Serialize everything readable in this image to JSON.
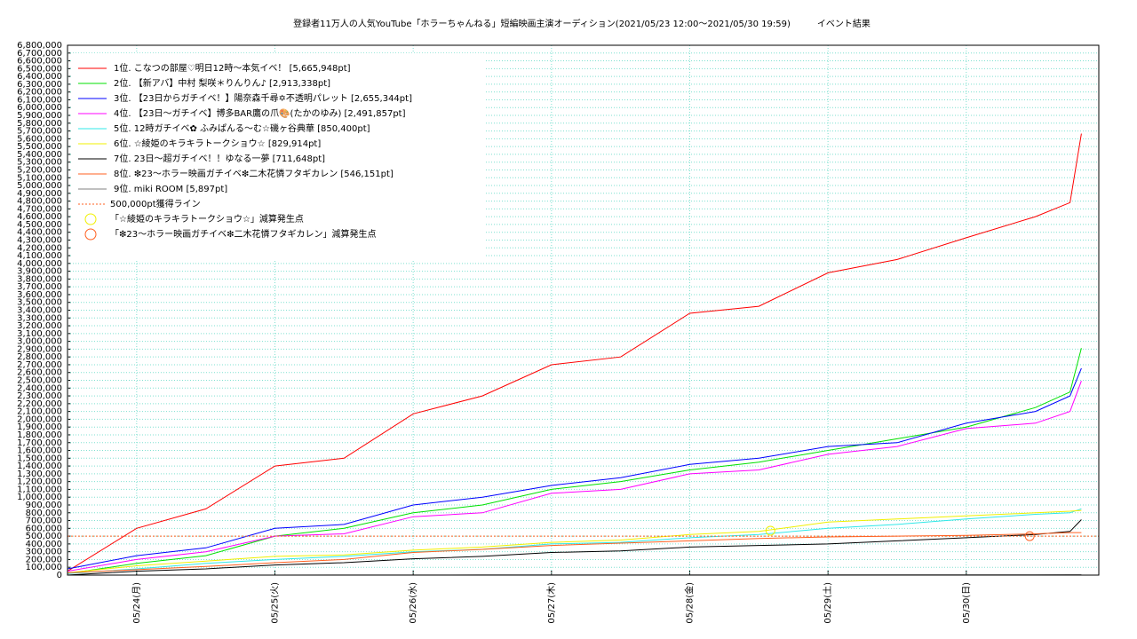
{
  "chart_data": {
    "type": "line",
    "title": "登録者11万人の人気YouTube「ホラーちゃんねる」短編映画主演オーディション(2021/05/23 12:00～2021/05/30 19:59)　　　イベント結果",
    "x": [
      "05/23 12:00",
      "05/24 00:00",
      "05/24 12:00",
      "05/25 00:00",
      "05/25 12:00",
      "05/26 00:00",
      "05/26 12:00",
      "05/27 00:00",
      "05/27 12:00",
      "05/28 00:00",
      "05/28 12:00",
      "05/29 00:00",
      "05/29 12:00",
      "05/30 00:00",
      "05/30 12:00",
      "05/30 18:00",
      "05/30 19:59"
    ],
    "series": [
      {
        "name": "1位. こなつの部屋♡明日12時～本気イベ！ [5,665,948pt]",
        "color": "#ff0000",
        "values": [
          50000,
          600000,
          850000,
          1400000,
          1500000,
          2070000,
          2300000,
          2700000,
          2800000,
          3360000,
          3450000,
          3880000,
          4050000,
          4330000,
          4600000,
          4780000,
          5665948
        ]
      },
      {
        "name": "2位. 【新アバ】中村 梨咲＊りんりん♪ [2,913,338pt]",
        "color": "#00e000",
        "values": [
          20000,
          150000,
          250000,
          500000,
          600000,
          800000,
          900000,
          1100000,
          1200000,
          1350000,
          1450000,
          1600000,
          1750000,
          1900000,
          2150000,
          2350000,
          2913338
        ]
      },
      {
        "name": "3位. 【23日からガチイベ！】陽奈森千尋✡不透明パレット [2,655,344pt]",
        "color": "#0000ff",
        "values": [
          80000,
          250000,
          350000,
          600000,
          650000,
          900000,
          1000000,
          1150000,
          1250000,
          1420000,
          1500000,
          1650000,
          1700000,
          1950000,
          2100000,
          2300000,
          2655344
        ]
      },
      {
        "name": "4位. 【23日～ガチイベ】博多BAR鷹の爪🎨(たかのゆみ) [2,491,857pt]",
        "color": "#ff00ff",
        "values": [
          50000,
          200000,
          300000,
          500000,
          530000,
          750000,
          800000,
          1050000,
          1100000,
          1300000,
          1350000,
          1550000,
          1650000,
          1880000,
          1950000,
          2100000,
          2491857
        ]
      },
      {
        "name": "5位. 12時ガチイベ✿ ふみぱんる～む☆磯ヶ谷典華 [850,400pt]",
        "color": "#30e8e8",
        "values": [
          20000,
          80000,
          150000,
          200000,
          240000,
          300000,
          330000,
          400000,
          420000,
          480000,
          520000,
          600000,
          650000,
          720000,
          780000,
          800000,
          850400
        ]
      },
      {
        "name": "6位. ☆綾姫のキラキラトークショウ☆ [829,914pt]",
        "color": "#f0f000",
        "values": [
          30000,
          120000,
          180000,
          240000,
          260000,
          320000,
          360000,
          420000,
          450000,
          520000,
          560000,
          680000,
          720000,
          760000,
          800000,
          820000,
          829914
        ]
      },
      {
        "name": "7位. 23日～超ガチイベ！！ゆなる一夢 [711,648pt]",
        "color": "#000000",
        "values": [
          0,
          50000,
          80000,
          130000,
          160000,
          210000,
          240000,
          290000,
          310000,
          360000,
          380000,
          400000,
          440000,
          480000,
          520000,
          560000,
          711648
        ]
      },
      {
        "name": "8位. ❇23～ホラー映画ガチイベ❇二木花憐フタギカレン [546,151pt]",
        "color": "#ff6020",
        "values": [
          30000,
          70000,
          110000,
          160000,
          200000,
          290000,
          330000,
          380000,
          410000,
          440000,
          470000,
          490000,
          500000,
          510000,
          530000,
          546151,
          546151
        ]
      },
      {
        "name": "9位. miki ROOM [5,897pt]",
        "color": "#808080",
        "values": [
          0,
          0,
          0,
          0,
          1000,
          1000,
          2000,
          2000,
          2000,
          3000,
          3000,
          4000,
          4000,
          5000,
          5000,
          5897,
          5897
        ]
      }
    ],
    "hline": {
      "name": "500,000pt獲得ライン",
      "value": 500000,
      "color": "#ff6020"
    },
    "markers": [
      {
        "name": "「☆綾姫のキラキラトークショウ☆」減算発生点",
        "x": "05/28 14:00",
        "value": 570000,
        "color": "#f0f000"
      },
      {
        "name": "「❇23～ホラー映画ガチイベ❇二木花憐フタギカレン」減算発生点",
        "x": "05/30 11:00",
        "value": 500000,
        "color": "#ff6020"
      }
    ],
    "xlim": [
      "05/23 12:00",
      "05/30 23:00"
    ],
    "xticks": [
      {
        "value": "05/24 00:00",
        "label": "05/24(月)"
      },
      {
        "value": "05/25 00:00",
        "label": "05/25(火)"
      },
      {
        "value": "05/26 00:00",
        "label": "05/26(水)"
      },
      {
        "value": "05/27 00:00",
        "label": "05/27(木)"
      },
      {
        "value": "05/28 00:00",
        "label": "05/28(金)"
      },
      {
        "value": "05/29 00:00",
        "label": "05/29(土)"
      },
      {
        "value": "05/30 00:00",
        "label": "05/30(日)"
      }
    ],
    "ylim": [
      0,
      6800000
    ],
    "yticks": [
      0,
      {
        "value": 100000,
        "label": "100,000"
      },
      {
        "value": 200000,
        "label": "200,000"
      },
      {
        "value": 300000,
        "label": "300,000"
      },
      {
        "value": 400000,
        "label": "400,000"
      },
      {
        "value": 500000,
        "label": "500,000"
      },
      {
        "value": 600000,
        "label": "600,000"
      },
      {
        "value": 700000,
        "label": "700,000"
      },
      {
        "value": 800000,
        "label": "800,000"
      },
      {
        "value": 900000,
        "label": "900,000"
      },
      {
        "value": 1000000,
        "label": "1,000,000"
      },
      {
        "value": 1100000,
        "label": "1,100,000"
      },
      {
        "value": 1200000,
        "label": "1,200,000"
      },
      {
        "value": 1300000,
        "label": "1,300,000"
      },
      {
        "value": 1400000,
        "label": "1,400,000"
      },
      {
        "value": 1500000,
        "label": "1,500,000"
      },
      {
        "value": 1600000,
        "label": "1,600,000"
      },
      {
        "value": 1700000,
        "label": "1,700,000"
      },
      {
        "value": 1800000,
        "label": "1,800,000"
      },
      {
        "value": 1900000,
        "label": "1,900,000"
      },
      {
        "value": 2000000,
        "label": "2,000,000"
      },
      {
        "value": 2100000,
        "label": "2,100,000"
      },
      {
        "value": 2200000,
        "label": "2,200,000"
      },
      {
        "value": 2300000,
        "label": "2,300,000"
      },
      {
        "value": 2400000,
        "label": "2,400,000"
      },
      {
        "value": 2500000,
        "label": "2,500,000"
      },
      {
        "value": 2600000,
        "label": "2,600,000"
      },
      {
        "value": 2700000,
        "label": "2,700,000"
      },
      {
        "value": 2800000,
        "label": "2,800,000"
      },
      {
        "value": 2900000,
        "label": "2,900,000"
      },
      {
        "value": 3000000,
        "label": "3,000,000"
      },
      {
        "value": 3100000,
        "label": "3,100,000"
      },
      {
        "value": 3200000,
        "label": "3,200,000"
      },
      {
        "value": 3300000,
        "label": "3,300,000"
      },
      {
        "value": 3400000,
        "label": "3,400,000"
      },
      {
        "value": 3500000,
        "label": "3,500,000"
      },
      {
        "value": 3600000,
        "label": "3,600,000"
      },
      {
        "value": 3700000,
        "label": "3,700,000"
      },
      {
        "value": 3800000,
        "label": "3,800,000"
      },
      {
        "value": 3900000,
        "label": "3,900,000"
      },
      {
        "value": 4000000,
        "label": "4,000,000"
      },
      {
        "value": 4100000,
        "label": "4,100,000"
      },
      {
        "value": 4200000,
        "label": "4,200,000"
      },
      {
        "value": 4300000,
        "label": "4,300,000"
      },
      {
        "value": 4400000,
        "label": "4,400,000"
      },
      {
        "value": 4500000,
        "label": "4,500,000"
      },
      {
        "value": 4600000,
        "label": "4,600,000"
      },
      {
        "value": 4700000,
        "label": "4,700,000"
      },
      {
        "value": 4800000,
        "label": "4,800,000"
      },
      {
        "value": 4900000,
        "label": "4,900,000"
      },
      {
        "value": 5000000,
        "label": "5,000,000"
      },
      {
        "value": 5100000,
        "label": "5,100,000"
      },
      {
        "value": 5200000,
        "label": "5,200,000"
      },
      {
        "value": 5300000,
        "label": "5,300,000"
      },
      {
        "value": 5400000,
        "label": "5,400,000"
      },
      {
        "value": 5500000,
        "label": "5,500,000"
      },
      {
        "value": 5600000,
        "label": "5,600,000"
      },
      {
        "value": 5700000,
        "label": "5,700,000"
      },
      {
        "value": 5800000,
        "label": "5,800,000"
      },
      {
        "value": 5900000,
        "label": "5,900,000"
      },
      {
        "value": 6000000,
        "label": "6,000,000"
      },
      {
        "value": 6100000,
        "label": "6,100,000"
      },
      {
        "value": 6200000,
        "label": "6,200,000"
      },
      {
        "value": 6300000,
        "label": "6,300,000"
      },
      {
        "value": 6400000,
        "label": "6,400,000"
      },
      {
        "value": 6500000,
        "label": "6,500,000"
      },
      {
        "value": 6600000,
        "label": "6,600,000"
      },
      {
        "value": 6700000,
        "label": "6,700,000"
      },
      {
        "value": 6800000,
        "label": "6,800,000"
      }
    ],
    "grid": true
  }
}
